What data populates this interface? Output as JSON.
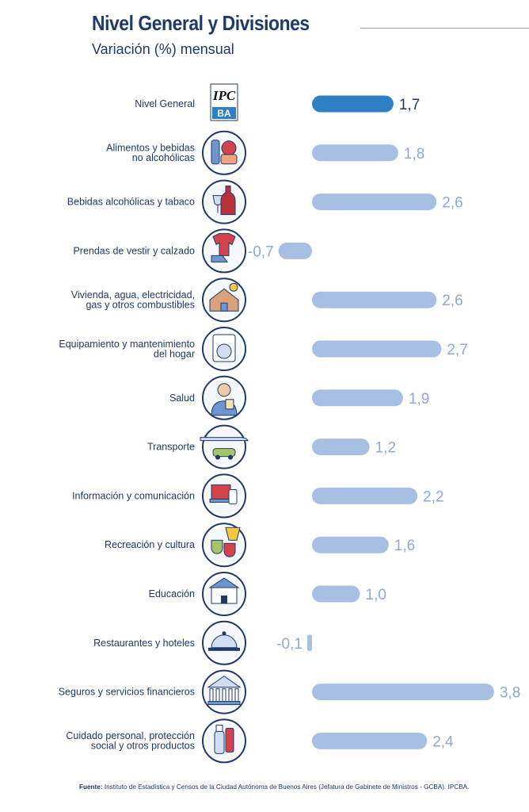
{
  "header": {
    "title": "Nivel General y Divisiones",
    "subtitle": "Variación (%) mensual"
  },
  "source": {
    "label": "Fuente:",
    "text": " Instituto de Estadística y Censos de la Ciudad Autónoma de Buenos Aires (Jefatura de Gabinete de Ministros - GCBA). IPCBA."
  },
  "logo_text": {
    "top": "IPC",
    "bottom": "BA"
  },
  "colors": {
    "highlight": "#2e7fc4",
    "bar": "#a7bfe3",
    "value_label": "#8fa9d4",
    "highlight_label": "#1f3a68",
    "icon_ring": "#1f3a68"
  },
  "chart_data": {
    "type": "bar",
    "orientation": "horizontal",
    "title": "Nivel General y Divisiones",
    "subtitle": "Variación (%) mensual",
    "categories": [
      "Nivel General",
      "Alimentos y bebidas\nno alcohólicas",
      "Bebidas alcohólicas y tabaco",
      "Prendas de vestir y calzado",
      "Vivienda, agua, electricidad,\ngas y otros combustibles",
      "Equipamiento y mantenimiento\ndel hogar",
      "Salud",
      "Transporte",
      "Información y comunicación",
      "Recreación y cultura",
      "Educación",
      "Restaurantes y hoteles",
      "Seguros y servicios financieros",
      "Cuidado personal, protección\nsocial y otros productos"
    ],
    "values": [
      1.7,
      1.8,
      2.6,
      -0.7,
      2.6,
      2.7,
      1.9,
      1.2,
      2.2,
      1.6,
      1.0,
      -0.1,
      3.8,
      2.4
    ],
    "value_labels": [
      "1,7",
      "1,8",
      "2,6",
      "-0,7",
      "2,6",
      "2,7",
      "1,9",
      "1,2",
      "2,2",
      "1,6",
      "1,0",
      "-0,1",
      "3,8",
      "2,4"
    ],
    "icons": [
      "ipcba-logo",
      "food-icon",
      "wine-icon",
      "clothing-icon",
      "house-icon",
      "washing-machine-icon",
      "doctor-icon",
      "transport-icon",
      "devices-icon",
      "theater-icon",
      "school-icon",
      "cloche-icon",
      "bank-icon",
      "personal-care-icon"
    ],
    "highlight_index": 0,
    "grid": false,
    "legend": "none"
  }
}
